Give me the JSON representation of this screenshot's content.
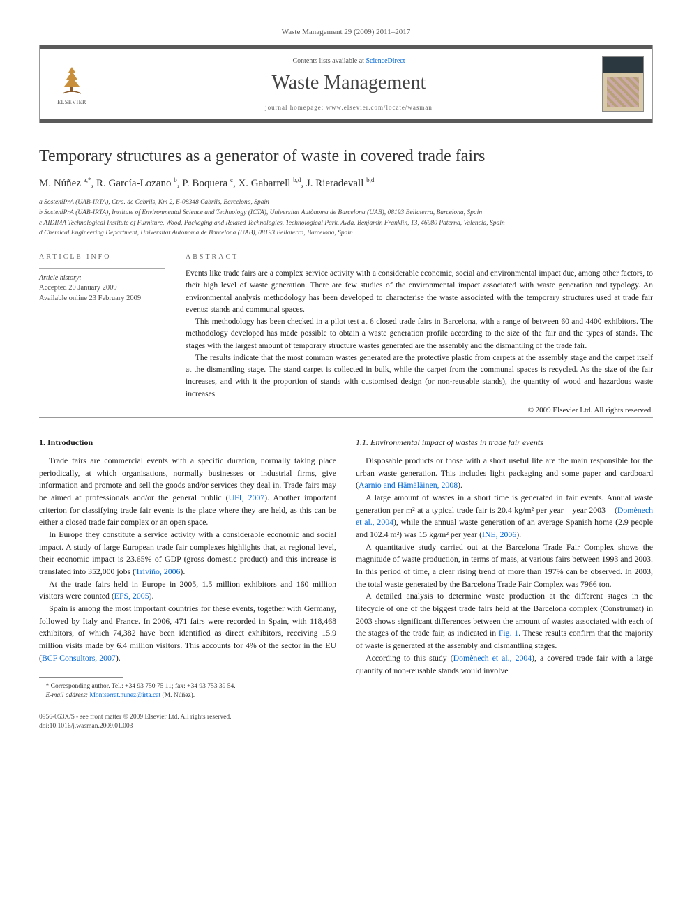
{
  "running_head": "Waste Management 29 (2009) 2011–2017",
  "header": {
    "contents_prefix": "Contents lists available at ",
    "contents_link": "ScienceDirect",
    "journal": "Waste Management",
    "homepage_label": "journal homepage: ",
    "homepage_url": "www.elsevier.com/locate/wasman",
    "publisher": "ELSEVIER"
  },
  "title": "Temporary structures as a generator of waste in covered trade fairs",
  "authors_html": "M. Núñez <sup>a,*</sup>, R. García-Lozano <sup>b</sup>, P. Boquera <sup>c</sup>, X. Gabarrell <sup>b,d</sup>, J. Rieradevall <sup>b,d</sup>",
  "affiliations": [
    "a SosteniPrA (UAB-IRTA), Ctra. de Cabrils, Km 2, E-08348 Cabrils, Barcelona, Spain",
    "b SosteniPrA (UAB-IRTA), Institute of Environmental Science and Technology (ICTA), Universitat Autònoma de Barcelona (UAB), 08193 Bellaterra, Barcelona, Spain",
    "c AIDIMA Technological Institute of Furniture, Wood, Packaging and Related Technologies, Technological Park, Avda. Benjamín Franklin, 13, 46980 Paterna, Valencia, Spain",
    "d Chemical Engineering Department, Universitat Autònoma de Barcelona (UAB), 08193 Bellaterra, Barcelona, Spain"
  ],
  "article_info": {
    "heading": "article info",
    "history_label": "Article history:",
    "accepted": "Accepted 20 January 2009",
    "online": "Available online 23 February 2009"
  },
  "abstract": {
    "heading": "abstract",
    "paras": [
      "Events like trade fairs are a complex service activity with a considerable economic, social and environmental impact due, among other factors, to their high level of waste generation. There are few studies of the environmental impact associated with waste generation and typology. An environmental analysis methodology has been developed to characterise the waste associated with the temporary structures used at trade fair events: stands and communal spaces.",
      "This methodology has been checked in a pilot test at 6 closed trade fairs in Barcelona, with a range of between 60 and 4400 exhibitors. The methodology developed has made possible to obtain a waste generation profile according to the size of the fair and the types of stands. The stages with the largest amount of temporary structure wastes generated are the assembly and the dismantling of the trade fair.",
      "The results indicate that the most common wastes generated are the protective plastic from carpets at the assembly stage and the carpet itself at the dismantling stage. The stand carpet is collected in bulk, while the carpet from the communal spaces is recycled. As the size of the fair increases, and with it the proportion of stands with customised design (or non-reusable stands), the quantity of wood and hazardous waste increases."
    ],
    "copyright": "© 2009 Elsevier Ltd. All rights reserved."
  },
  "body": {
    "left": {
      "heading": "1. Introduction",
      "paras": [
        "Trade fairs are commercial events with a specific duration, normally taking place periodically, at which organisations, normally businesses or industrial firms, give information and promote and sell the goods and/or services they deal in. Trade fairs may be aimed at professionals and/or the general public (<span class='ref-link'>UFI, 2007</span>). Another important criterion for classifying trade fair events is the place where they are held, as this can be either a closed trade fair complex or an open space.",
        "In Europe they constitute a service activity with a considerable economic and social impact. A study of large European trade fair complexes highlights that, at regional level, their economic impact is 23.65% of GDP (gross domestic product) and this increase is translated into 352,000 jobs (<span class='ref-link'>Triviño, 2006</span>).",
        "At the trade fairs held in Europe in 2005, 1.5 million exhibitors and 160 million visitors were counted (<span class='ref-link'>EFS, 2005</span>).",
        "Spain is among the most important countries for these events, together with Germany, followed by Italy and France. In 2006, 471 fairs were recorded in Spain, with 118,468 exhibitors, of which 74,382 have been identified as direct exhibitors, receiving 15.9 million visits made by 6.4 million visitors. This accounts for 4% of the sector in the EU (<span class='ref-link'>BCF Consultors, 2007</span>)."
      ]
    },
    "right": {
      "heading": "1.1. Environmental impact of wastes in trade fair events",
      "paras": [
        "Disposable products or those with a short useful life are the main responsible for the urban waste generation. This includes light packaging and some paper and cardboard (<span class='ref-link'>Aarnio and Hämäläinen, 2008</span>).",
        "A large amount of wastes in a short time is generated in fair events. Annual waste generation per m² at a typical trade fair is 20.4 kg/m² per year – year 2003 – (<span class='ref-link'>Domènech et al., 2004</span>), while the annual waste generation of an average Spanish home (2.9 people and 102.4 m²) was 15 kg/m² per year (<span class='ref-link'>INE, 2006</span>).",
        "A quantitative study carried out at the Barcelona Trade Fair Complex shows the magnitude of waste production, in terms of mass, at various fairs between 1993 and 2003. In this period of time, a clear rising trend of more than 197% can be observed. In 2003, the total waste generated by the Barcelona Trade Fair Complex was 7966 ton.",
        "A detailed analysis to determine waste production at the different stages in the lifecycle of one of the biggest trade fairs held at the Barcelona complex (Construmat) in 2003 shows significant differences between the amount of wastes associated with each of the stages of the trade fair, as indicated in <span class='ref-link'>Fig. 1</span>. These results confirm that the majority of waste is generated at the assembly and dismantling stages.",
        "According to this study (<span class='ref-link'>Domènech et al., 2004</span>), a covered trade fair with a large quantity of non-reusable stands would involve"
      ]
    }
  },
  "footnote": {
    "corr": "* Corresponding author. Tel.: +34 93 750 75 11; fax: +34 93 753 39 54.",
    "email_label": "E-mail address:",
    "email": "Montserrat.nunez@irta.cat",
    "email_who": "(M. Núñez)."
  },
  "footer": {
    "issn": "0956-053X/$ - see front matter © 2009 Elsevier Ltd. All rights reserved.",
    "doi": "doi:10.1016/j.wasman.2009.01.003"
  }
}
